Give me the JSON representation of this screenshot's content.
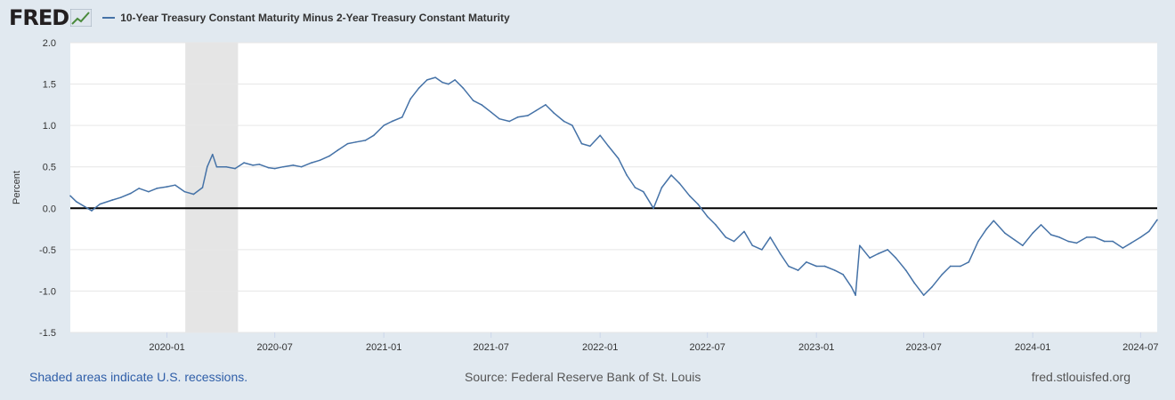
{
  "header": {
    "logo_text": "FRED",
    "series_title": "10-Year Treasury Constant Maturity Minus 2-Year Treasury Constant Maturity"
  },
  "footer": {
    "recession_note": "Shaded areas indicate U.S. recessions.",
    "source": "Source: Federal Reserve Bank of St. Louis",
    "site": "fred.stlouisfed.org"
  },
  "colors": {
    "series": "#4572a7",
    "recession": "#e5e5e5",
    "background": "#e1e9f0",
    "zero_line": "#000000"
  },
  "chart_data": {
    "type": "line",
    "title": "10-Year Treasury Constant Maturity Minus 2-Year Treasury Constant Maturity",
    "xlabel": "",
    "ylabel": "Percent",
    "xlim": [
      "2019-07-22",
      "2024-07-29"
    ],
    "ylim": [
      -1.5,
      2.0
    ],
    "y_ticks": [
      2.0,
      1.5,
      1.0,
      0.5,
      0.0,
      -0.5,
      -1.0,
      -1.5
    ],
    "y_tick_labels": [
      "2.0",
      "1.5",
      "1.0",
      "0.5",
      "0.0",
      "-0.5",
      "-1.0",
      "-1.5"
    ],
    "x_ticks": [
      "2020-01-01",
      "2020-07-01",
      "2021-01-01",
      "2021-07-01",
      "2022-01-01",
      "2022-07-01",
      "2023-01-01",
      "2023-07-01",
      "2024-01-01",
      "2024-07-01"
    ],
    "x_tick_labels": [
      "2020-01",
      "2020-07",
      "2021-01",
      "2021-07",
      "2022-01",
      "2022-07",
      "2023-01",
      "2023-07",
      "2024-01",
      "2024-07"
    ],
    "recessions": [
      {
        "start": "2020-02-01",
        "end": "2020-04-30"
      }
    ],
    "reference_line": 0,
    "grid": true,
    "series": [
      {
        "name": "10-Year Treasury Constant Maturity Minus 2-Year Treasury Constant Maturity",
        "x": [
          "2019-07-22",
          "2019-08-01",
          "2019-08-27",
          "2019-09-10",
          "2019-10-01",
          "2019-10-15",
          "2019-11-01",
          "2019-11-15",
          "2019-12-01",
          "2019-12-15",
          "2020-01-01",
          "2020-01-15",
          "2020-01-31",
          "2020-02-15",
          "2020-03-01",
          "2020-03-09",
          "2020-03-18",
          "2020-03-25",
          "2020-04-10",
          "2020-04-25",
          "2020-05-10",
          "2020-05-25",
          "2020-06-05",
          "2020-06-20",
          "2020-07-01",
          "2020-07-15",
          "2020-08-01",
          "2020-08-15",
          "2020-09-01",
          "2020-09-15",
          "2020-10-01",
          "2020-10-15",
          "2020-11-01",
          "2020-11-15",
          "2020-12-01",
          "2020-12-15",
          "2021-01-01",
          "2021-01-15",
          "2021-02-01",
          "2021-02-15",
          "2021-03-01",
          "2021-03-15",
          "2021-03-29",
          "2021-04-10",
          "2021-04-20",
          "2021-05-01",
          "2021-05-15",
          "2021-06-01",
          "2021-06-15",
          "2021-07-01",
          "2021-07-15",
          "2021-08-01",
          "2021-08-15",
          "2021-09-01",
          "2021-09-15",
          "2021-10-01",
          "2021-10-15",
          "2021-11-01",
          "2021-11-15",
          "2021-12-01",
          "2021-12-15",
          "2022-01-01",
          "2022-01-15",
          "2022-02-01",
          "2022-02-15",
          "2022-03-01",
          "2022-03-15",
          "2022-04-01",
          "2022-04-15",
          "2022-05-01",
          "2022-05-15",
          "2022-06-01",
          "2022-06-15",
          "2022-07-01",
          "2022-07-15",
          "2022-08-01",
          "2022-08-15",
          "2022-09-01",
          "2022-09-15",
          "2022-10-01",
          "2022-10-15",
          "2022-11-01",
          "2022-11-15",
          "2022-12-01",
          "2022-12-15",
          "2023-01-01",
          "2023-01-15",
          "2023-02-01",
          "2023-02-15",
          "2023-03-01",
          "2023-03-08",
          "2023-03-15",
          "2023-04-01",
          "2023-04-15",
          "2023-05-01",
          "2023-05-15",
          "2023-06-01",
          "2023-06-15",
          "2023-07-01",
          "2023-07-15",
          "2023-08-01",
          "2023-08-15",
          "2023-09-01",
          "2023-09-15",
          "2023-10-01",
          "2023-10-15",
          "2023-10-27",
          "2023-11-15",
          "2023-12-01",
          "2023-12-15",
          "2024-01-01",
          "2024-01-15",
          "2024-02-01",
          "2024-02-15",
          "2024-03-01",
          "2024-03-15",
          "2024-04-01",
          "2024-04-15",
          "2024-05-01",
          "2024-05-15",
          "2024-06-01",
          "2024-06-15",
          "2024-07-01",
          "2024-07-15",
          "2024-07-29"
        ],
        "values": [
          0.15,
          0.08,
          -0.03,
          0.05,
          0.1,
          0.13,
          0.18,
          0.24,
          0.2,
          0.24,
          0.26,
          0.28,
          0.2,
          0.17,
          0.25,
          0.5,
          0.65,
          0.5,
          0.5,
          0.48,
          0.55,
          0.52,
          0.53,
          0.49,
          0.48,
          0.5,
          0.52,
          0.5,
          0.55,
          0.58,
          0.63,
          0.7,
          0.78,
          0.8,
          0.82,
          0.88,
          1.0,
          1.05,
          1.1,
          1.32,
          1.45,
          1.55,
          1.58,
          1.52,
          1.5,
          1.55,
          1.45,
          1.3,
          1.25,
          1.16,
          1.08,
          1.05,
          1.1,
          1.12,
          1.18,
          1.25,
          1.15,
          1.05,
          1.0,
          0.78,
          0.75,
          0.88,
          0.75,
          0.6,
          0.4,
          0.25,
          0.2,
          0.0,
          0.25,
          0.4,
          0.3,
          0.15,
          0.05,
          -0.1,
          -0.2,
          -0.35,
          -0.4,
          -0.28,
          -0.45,
          -0.5,
          -0.35,
          -0.55,
          -0.7,
          -0.75,
          -0.65,
          -0.7,
          -0.7,
          -0.75,
          -0.8,
          -0.95,
          -1.05,
          -0.45,
          -0.6,
          -0.55,
          -0.5,
          -0.6,
          -0.75,
          -0.9,
          -1.05,
          -0.95,
          -0.8,
          -0.7,
          -0.7,
          -0.65,
          -0.4,
          -0.25,
          -0.15,
          -0.3,
          -0.38,
          -0.45,
          -0.3,
          -0.2,
          -0.32,
          -0.35,
          -0.4,
          -0.42,
          -0.35,
          -0.35,
          -0.4,
          -0.4,
          -0.48,
          -0.42,
          -0.35,
          -0.28,
          -0.14
        ]
      }
    ]
  }
}
